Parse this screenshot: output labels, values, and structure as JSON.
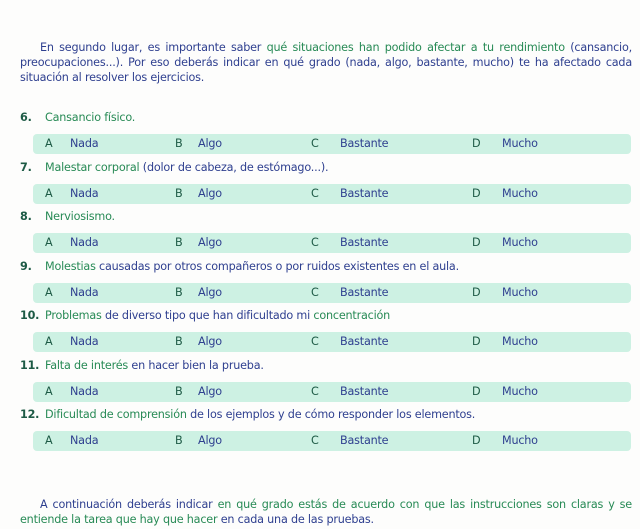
{
  "intro": [
    {
      "t": "En segundo lugar, es importante saber ",
      "c": "b"
    },
    {
      "t": "qué situaciones han podido afectar a tu rendimiento",
      "c": "g"
    },
    {
      "t": " (cansancio, preocupaciones...).  Por eso deberás indicar en qué grado (nada, algo, bastante, mucho) te ha afectado cada situación al resolver los ejercicios.",
      "c": "b"
    }
  ],
  "options": [
    {
      "letter": "A",
      "label": "Nada"
    },
    {
      "letter": "B",
      "label": "Algo"
    },
    {
      "letter": "C",
      "label": "Bastante"
    },
    {
      "letter": "D",
      "label": "Mucho"
    }
  ],
  "questions": [
    {
      "num": "6.",
      "parts": [
        {
          "t": "Cansancio físico.",
          "c": "g"
        }
      ]
    },
    {
      "num": "7.",
      "parts": [
        {
          "t": "Malestar corporal",
          "c": "g"
        },
        {
          "t": " (dolor de cabeza, de estómago...).",
          "c": "b"
        }
      ]
    },
    {
      "num": "8.",
      "parts": [
        {
          "t": "Nerviosismo.",
          "c": "g"
        }
      ]
    },
    {
      "num": "9.",
      "parts": [
        {
          "t": "Molestias",
          "c": "g"
        },
        {
          "t": " causadas por otros compañeros o por ruidos existentes en el aula.",
          "c": "b"
        }
      ]
    },
    {
      "num": "10.",
      "parts": [
        {
          "t": "Problemas",
          "c": "g"
        },
        {
          "t": " de diverso tipo que han dificultado mi ",
          "c": "b"
        },
        {
          "t": "concentración",
          "c": "g"
        }
      ]
    },
    {
      "num": "11.",
      "parts": [
        {
          "t": "Falta de interés",
          "c": "g"
        },
        {
          "t": " en hacer bien la prueba.",
          "c": "b"
        }
      ]
    },
    {
      "num": "12.",
      "parts": [
        {
          "t": "Dificultad de comprensión",
          "c": "g"
        },
        {
          "t": " de los ejemplos y de cómo responder los elementos.",
          "c": "b"
        }
      ]
    }
  ],
  "outro": [
    {
      "t": "A continuación deberás indicar ",
      "c": "b"
    },
    {
      "t": "en qué grado estás de acuerdo con que las instrucciones son claras y se entiende la tarea que hay que hacer",
      "c": "g"
    },
    {
      "t": " en cada una de las pruebas.",
      "c": "b"
    }
  ],
  "colors": {
    "green": "#278a55",
    "blue": "#2e3f8f",
    "band": "#cdf1e3"
  }
}
